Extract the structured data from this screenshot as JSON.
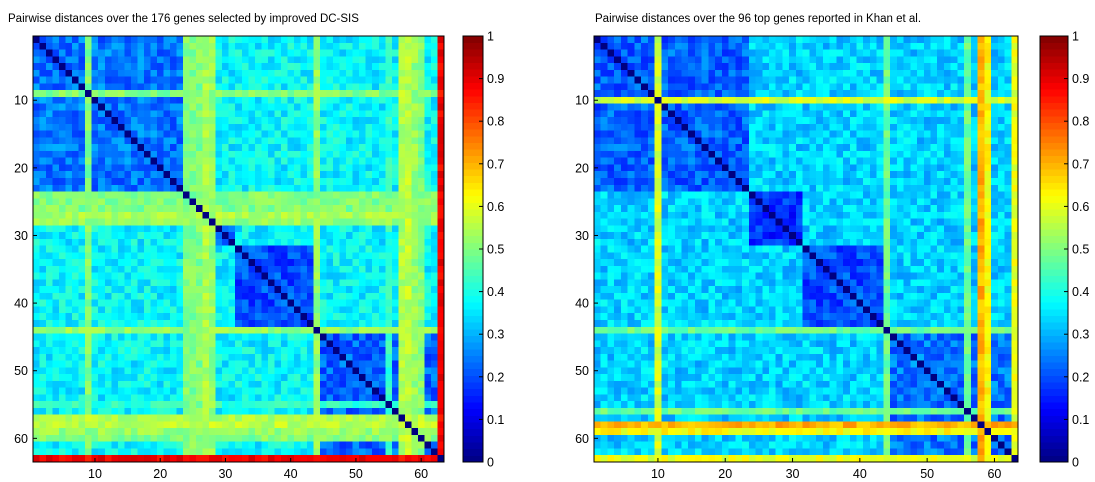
{
  "chart_data": [
    {
      "type": "heatmap",
      "title": "Pairwise distances over the 176 genes selected by improved DC-SIS",
      "xlabel": "",
      "ylabel": "",
      "n": 63,
      "x_ticks": [
        10,
        20,
        30,
        40,
        50,
        60
      ],
      "y_ticks": [
        10,
        20,
        30,
        40,
        50,
        60
      ],
      "colorbar": {
        "range": [
          0,
          1
        ],
        "ticks": [
          "0",
          "0.1",
          "0.2",
          "0.3",
          "0.4",
          "0.5",
          "0.6",
          "0.7",
          "0.8",
          "0.9",
          "1"
        ],
        "colormap": "jet"
      },
      "blocks": [
        {
          "rows": [
            1,
            23
          ],
          "value": 0.24
        },
        {
          "rows": [
            24,
            31
          ],
          "value": 0.23
        },
        {
          "rows": [
            32,
            43
          ],
          "value": 0.2
        },
        {
          "rows": [
            44,
            63
          ],
          "value": 0.22
        }
      ],
      "off_block_value": 0.37,
      "highlight_rows": [
        {
          "index": 9,
          "value": 0.5
        },
        {
          "index": 24,
          "value": 0.5
        },
        {
          "index": 25,
          "value": 0.5
        },
        {
          "index": 26,
          "value": 0.5
        },
        {
          "index": 27,
          "value": 0.54
        },
        {
          "index": 28,
          "value": 0.52
        },
        {
          "index": 44,
          "value": 0.52
        },
        {
          "index": 55,
          "value": 0.42
        },
        {
          "index": 57,
          "value": 0.55
        },
        {
          "index": 58,
          "value": 0.56
        },
        {
          "index": 59,
          "value": 0.52
        },
        {
          "index": 60,
          "value": 0.5
        },
        {
          "index": 63,
          "value": 0.88
        }
      ]
    },
    {
      "type": "heatmap",
      "title": "Pairwise distances over the 96 top genes reported in Khan et al.",
      "xlabel": "",
      "ylabel": "",
      "n": 63,
      "x_ticks": [
        10,
        20,
        30,
        40,
        50,
        60
      ],
      "y_ticks": [
        10,
        20,
        30,
        40,
        50,
        60
      ],
      "colorbar": {
        "range": [
          0,
          1
        ],
        "ticks": [
          "0",
          "0.1",
          "0.2",
          "0.3",
          "0.4",
          "0.5",
          "0.6",
          "0.7",
          "0.8",
          "0.9",
          "1"
        ],
        "colormap": "jet"
      },
      "blocks": [
        {
          "rows": [
            1,
            23
          ],
          "value": 0.22
        },
        {
          "rows": [
            24,
            31
          ],
          "value": 0.17
        },
        {
          "rows": [
            32,
            43
          ],
          "value": 0.2
        },
        {
          "rows": [
            44,
            63
          ],
          "value": 0.24
        }
      ],
      "off_block_value": 0.33,
      "highlight_rows": [
        {
          "index": 10,
          "value": 0.58
        },
        {
          "index": 44,
          "value": 0.48
        },
        {
          "index": 56,
          "value": 0.48
        },
        {
          "index": 58,
          "value": 0.7
        },
        {
          "index": 59,
          "value": 0.62
        },
        {
          "index": 63,
          "value": 0.6
        }
      ]
    }
  ]
}
